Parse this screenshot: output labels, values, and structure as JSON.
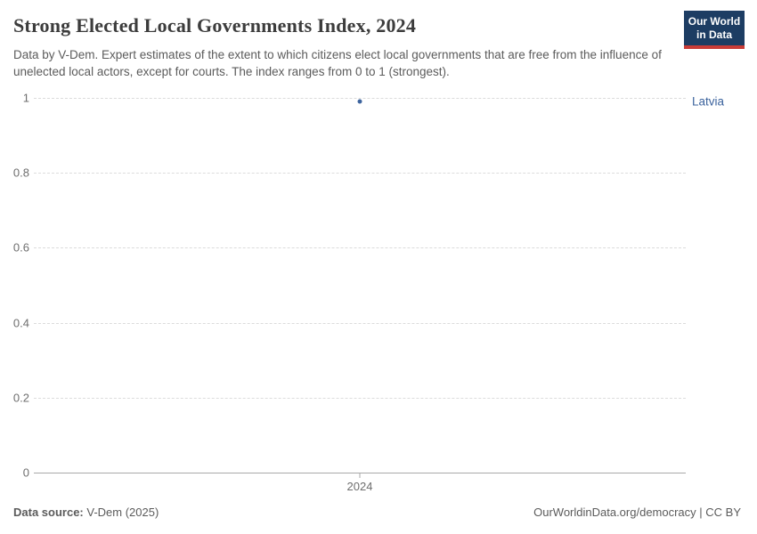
{
  "header": {
    "title": "Strong Elected Local Governments Index, 2024",
    "subtitle": "Data by V-Dem. Expert estimates of the extent to which citizens elect local governments that are free from the influence of unelected local actors, except for courts. The index ranges from 0 to 1 (strongest).",
    "logo": {
      "line1": "Our World",
      "line2": "in Data"
    }
  },
  "chart_data": {
    "type": "scatter",
    "title": "Strong Elected Local Governments Index, 2024",
    "x": [
      "2024"
    ],
    "series": [
      {
        "name": "Latvia",
        "values": [
          0.99
        ],
        "color": "#3d649e"
      }
    ],
    "ylabel": "",
    "xlabel": "",
    "ylim": [
      0,
      1
    ],
    "y_ticks": [
      {
        "value": 1,
        "label": "1"
      },
      {
        "value": 0.8,
        "label": "0.8"
      },
      {
        "value": 0.6,
        "label": "0.6"
      },
      {
        "value": 0.4,
        "label": "0.4"
      },
      {
        "value": 0.2,
        "label": "0.2"
      },
      {
        "value": 0,
        "label": "0"
      }
    ],
    "x_tick_label": "2024",
    "grid": true,
    "legend_position": "right-of-series"
  },
  "footer": {
    "source_label": "Data source:",
    "source_value": " V-Dem (2025)",
    "credit": "OurWorldinData.org/democracy | CC BY"
  },
  "colors": {
    "accent_blue": "#3d649e",
    "logo_navy": "#1d3d63",
    "logo_red": "#c93c37",
    "gridline": "#dcdcdc",
    "axis": "#a8a8a8"
  }
}
